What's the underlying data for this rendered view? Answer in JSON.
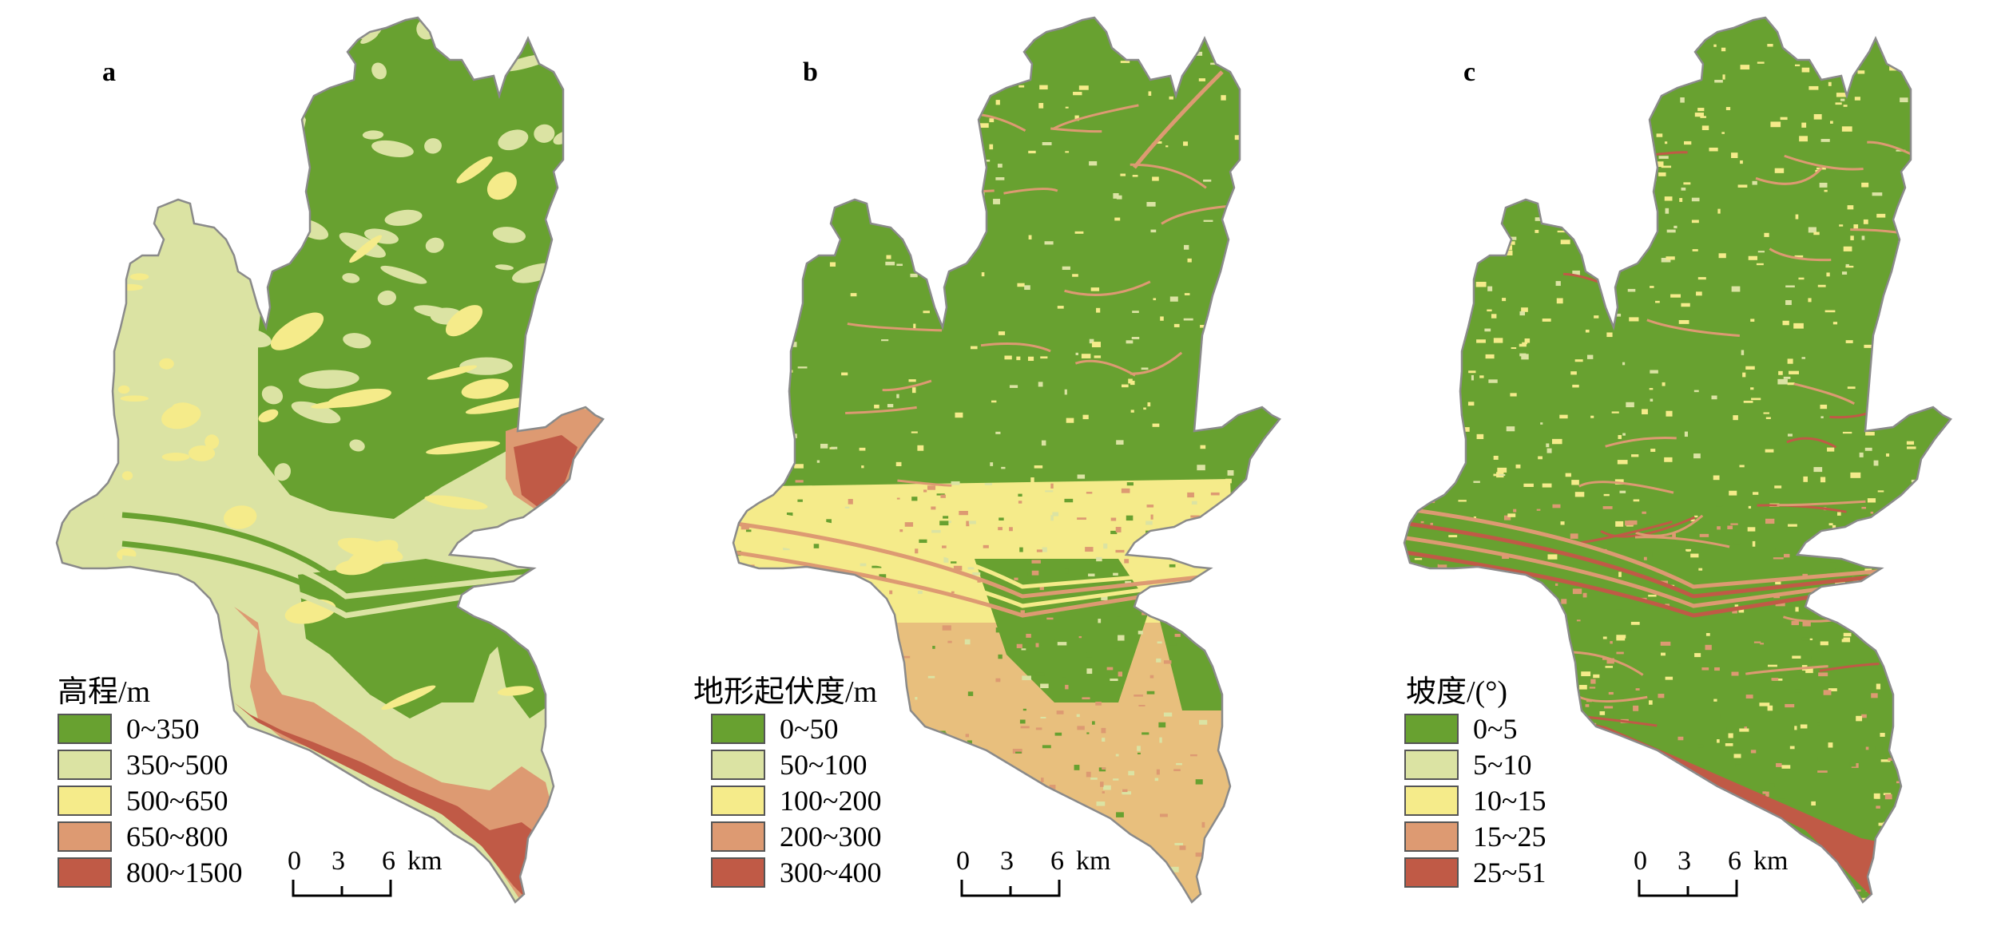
{
  "colors": {
    "class1": "#68a130",
    "class2": "#dbe3a3",
    "class3": "#f5eb8a",
    "class4": "#dd9a72",
    "class5": "#c05a46",
    "outline": "#8a8a8a"
  },
  "panels": [
    {
      "letter": "a",
      "legend_title": "高程/m",
      "legend": [
        "0~350",
        "350~500",
        "500~650",
        "650~800",
        "800~1500"
      ],
      "scale": {
        "t0": "0",
        "t1": "3",
        "t2": "6",
        "unit": "km"
      }
    },
    {
      "letter": "b",
      "legend_title": "地形起伏度/m",
      "legend": [
        "0~50",
        "50~100",
        "100~200",
        "200~300",
        "300~400"
      ],
      "scale": {
        "t0": "0",
        "t1": "3",
        "t2": "6",
        "unit": "km"
      }
    },
    {
      "letter": "c",
      "legend_title": "坡度/(°)",
      "legend": [
        "0~5",
        "5~10",
        "10~15",
        "15~25",
        "25~51"
      ],
      "scale": {
        "t0": "0",
        "t1": "3",
        "t2": "6",
        "unit": "km"
      }
    }
  ]
}
